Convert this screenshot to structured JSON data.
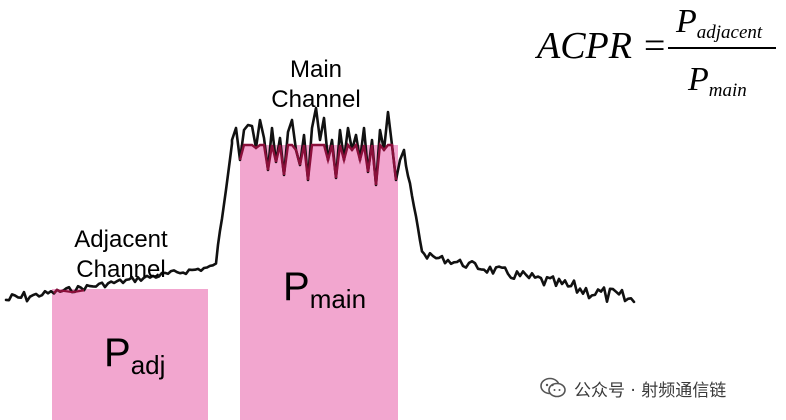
{
  "labels": {
    "main_line1": "Main",
    "main_line2": "Channel",
    "adjacent_line1": "Adjacent",
    "adjacent_line2": "Channel",
    "p_main": "P",
    "p_main_sub": "main",
    "p_adj": "P",
    "p_adj_sub": "adj"
  },
  "formula": {
    "lhs": "ACPR =",
    "numerator": "P",
    "numerator_sub": "adjacent",
    "denominator": "P",
    "denominator_sub": "main"
  },
  "watermark": {
    "text": "公众号 · 射频通信链",
    "icon": "wechat-icon"
  },
  "colors": {
    "box_fill": "#f2a6cf",
    "trace": "#111111",
    "overlap_trace": "#8a0f3a"
  }
}
